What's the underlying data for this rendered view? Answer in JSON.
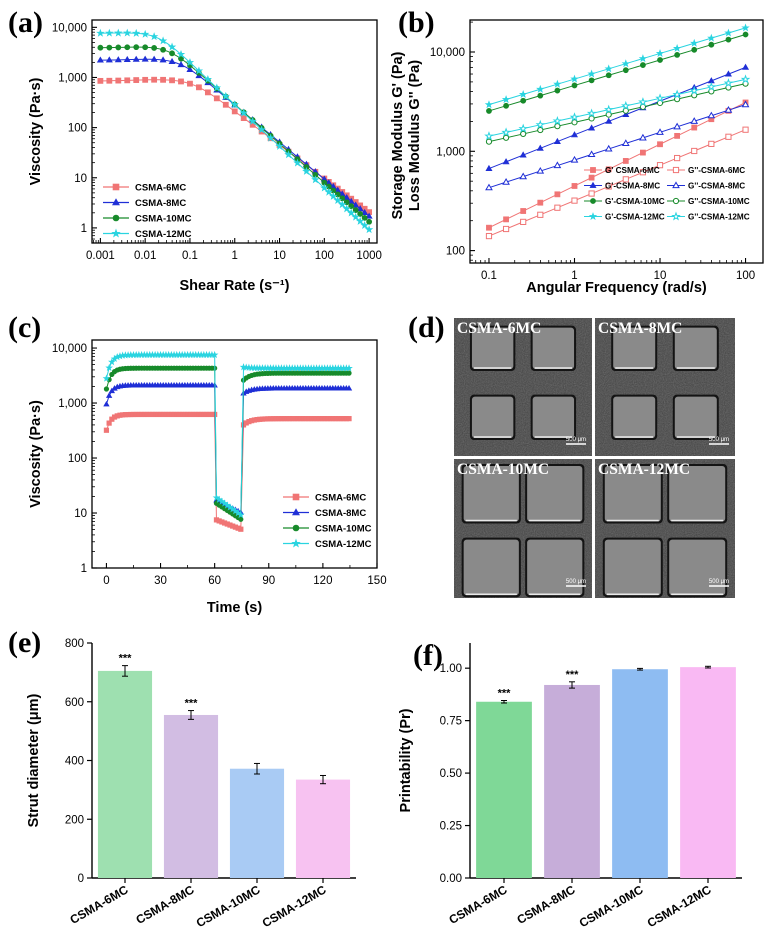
{
  "figure": {
    "panels": [
      "(a)",
      "(b)",
      "(c)",
      "(d)",
      "(e)",
      "(f)"
    ]
  },
  "colors": {
    "CSMA-6MC": "#f07575",
    "CSMA-8MC": "#1f2fd6",
    "CSMA-10MC": "#178a2a",
    "CSMA-12MC": "#2ad4e0",
    "bar_6MC": "#9ee0b0",
    "bar_8MC": "#d2bde3",
    "bar_10MC": "#a9cbf4",
    "bar_12MC": "#f7c2f1",
    "bar_f_6MC": "#7fd897",
    "bar_f_8MC": "#c6add9",
    "bar_f_10MC": "#8ebcf2",
    "bar_f_12MC": "#f9b9f3"
  },
  "chart_data": [
    {
      "panel": "(a)",
      "type": "line",
      "xscale": "log",
      "yscale": "log",
      "xlabel": "Shear Rate (s⁻¹)",
      "ylabel": "Viscosity (Pa·s)",
      "xlim": [
        0.001,
        1000
      ],
      "ylim": [
        0.5,
        14000
      ],
      "xticks": [
        0.001,
        0.01,
        0.1,
        1,
        10,
        100,
        1000
      ],
      "xtick_labels": [
        "0.001",
        "0.01",
        "0.1",
        "1",
        "10",
        "100",
        "1000"
      ],
      "yticks": [
        1,
        10,
        100,
        1000,
        10000
      ],
      "ytick_labels": [
        "1",
        "10",
        "100",
        "1,000",
        "10,000"
      ],
      "legend": [
        "CSMA-6MC",
        "CSMA-8MC",
        "CSMA-10MC",
        "CSMA-12MC"
      ],
      "series": [
        {
          "name": "CSMA-6MC",
          "marker": "square",
          "eta0": 850,
          "lambda": 8,
          "n": 0.33
        },
        {
          "name": "CSMA-8MC",
          "marker": "triangle",
          "eta0": 2200,
          "lambda": 16,
          "n": 0.26
        },
        {
          "name": "CSMA-10MC",
          "marker": "circle",
          "eta0": 3900,
          "lambda": 28,
          "n": 0.22
        },
        {
          "name": "CSMA-12MC",
          "marker": "star",
          "eta0": 7600,
          "lambda": 52,
          "n": 0.17
        }
      ]
    },
    {
      "panel": "(b)",
      "type": "line",
      "xscale": "log",
      "yscale": "log",
      "xlabel": "Angular Frequency (rad/s)",
      "ylabel": "Storage Modulus G' (Pa)",
      "ylabel2": "Loss Modulus G'' (Pa)",
      "xlim": [
        0.06,
        160
      ],
      "ylim": [
        75,
        21000
      ],
      "xticks": [
        0.1,
        1,
        10,
        100
      ],
      "xtick_labels": [
        "0.1",
        "1",
        "10",
        "100"
      ],
      "yticks": [
        100,
        1000,
        10000
      ],
      "ytick_labels": [
        "100",
        "1,000",
        "10,000"
      ],
      "legend": [
        "G' CSMA-6MC",
        "G''-CSMA-6MC",
        "G'-CSMA-8MC",
        "G''-CSMA-8MC",
        "G'-CSMA-10MC",
        "G''-CSMA-10MC",
        "G'-CSMA-12MC",
        "G''-CSMA-12MC"
      ],
      "series": [
        {
          "name": "G' CSMA-6MC",
          "color": "CSMA-6MC",
          "filled": true,
          "marker": "square",
          "y_start": 170,
          "y_end": 3100
        },
        {
          "name": "G''-CSMA-6MC",
          "color": "CSMA-6MC",
          "filled": false,
          "marker": "square",
          "y_start": 140,
          "y_end": 1650
        },
        {
          "name": "G'-CSMA-8MC",
          "color": "CSMA-8MC",
          "filled": true,
          "marker": "triangle",
          "y_start": 670,
          "y_end": 7000
        },
        {
          "name": "G''-CSMA-8MC",
          "color": "CSMA-8MC",
          "filled": false,
          "marker": "triangle",
          "y_start": 430,
          "y_end": 2950
        },
        {
          "name": "G'-CSMA-10MC",
          "color": "CSMA-10MC",
          "filled": true,
          "marker": "circle",
          "y_start": 2550,
          "y_end": 15000
        },
        {
          "name": "G''-CSMA-10MC",
          "color": "CSMA-10MC",
          "filled": false,
          "marker": "circle",
          "y_start": 1250,
          "y_end": 4800
        },
        {
          "name": "G'-CSMA-12MC",
          "color": "CSMA-12MC",
          "filled": true,
          "marker": "star",
          "y_start": 2950,
          "y_end": 17500
        },
        {
          "name": "G''-CSMA-12MC",
          "color": "CSMA-12MC",
          "filled": false,
          "marker": "star",
          "y_start": 1420,
          "y_end": 5300
        }
      ]
    },
    {
      "panel": "(c)",
      "type": "line",
      "xscale": "linear",
      "yscale": "log",
      "xlabel": "Time (s)",
      "ylabel": "Viscosity (Pa·s)",
      "xlim": [
        -8,
        150
      ],
      "ylim": [
        1,
        14000
      ],
      "xticks": [
        0,
        30,
        60,
        90,
        120,
        150
      ],
      "xtick_labels": [
        "0",
        "30",
        "60",
        "90",
        "120",
        "150"
      ],
      "yticks": [
        1,
        10,
        100,
        1000,
        10000
      ],
      "ytick_labels": [
        "1",
        "10",
        "100",
        "1,000",
        "10,000"
      ],
      "legend": [
        "CSMA-6MC",
        "CSMA-8MC",
        "CSMA-10MC",
        "CSMA-12MC"
      ],
      "series": [
        {
          "name": "CSMA-6MC",
          "marker": "square",
          "start": 320,
          "plateau": 620,
          "low_start": 7.5,
          "low_end": 5.0,
          "recover_start": 400,
          "recover_plateau": 520
        },
        {
          "name": "CSMA-8MC",
          "marker": "triangle",
          "start": 950,
          "plateau": 2100,
          "low_start": 17,
          "low_end": 10,
          "recover_start": 1500,
          "recover_plateau": 1850
        },
        {
          "name": "CSMA-10MC",
          "marker": "circle",
          "start": 1800,
          "plateau": 4300,
          "low_start": 15,
          "low_end": 7.5,
          "recover_start": 2600,
          "recover_plateau": 3500
        },
        {
          "name": "CSMA-12MC",
          "marker": "star",
          "start": 2800,
          "plateau": 7500,
          "low_start": 19,
          "low_end": 9,
          "recover_start": 4500,
          "recover_plateau": 4300
        }
      ]
    },
    {
      "panel": "(e)",
      "type": "bar",
      "categories": [
        "CSMA-6MC",
        "CSMA-8MC",
        "CSMA-10MC",
        "CSMA-12MC"
      ],
      "values": [
        705,
        555,
        372,
        335
      ],
      "errors": [
        18,
        15,
        18,
        14
      ],
      "significance": [
        "***",
        "***",
        "",
        ""
      ],
      "ylabel": "Strut diameter (μm)",
      "ylim": [
        0,
        800
      ],
      "yticks": [
        0,
        200,
        400,
        600,
        800
      ],
      "ytick_labels": [
        "0",
        "200",
        "400",
        "600",
        "800"
      ]
    },
    {
      "panel": "(f)",
      "type": "bar",
      "categories": [
        "CSMA-6MC",
        "CSMA-8MC",
        "CSMA-10MC",
        "CSMA-12MC"
      ],
      "values": [
        0.84,
        0.92,
        0.995,
        1.005
      ],
      "errors": [
        0.006,
        0.015,
        0.004,
        0.004
      ],
      "significance": [
        "***",
        "***",
        "",
        ""
      ],
      "ylabel": "Printability (Pr)",
      "ylim": [
        0,
        1.12
      ],
      "yticks": [
        0,
        0.25,
        0.5,
        0.75,
        1.0
      ],
      "ytick_labels": [
        "0.00",
        "0.25",
        "0.50",
        "0.75",
        "1.00"
      ]
    }
  ],
  "micrographs": {
    "panel": "(d)",
    "titles": [
      "CSMA-6MC",
      "CSMA-8MC",
      "CSMA-10MC",
      "CSMA-12MC"
    ],
    "scale_bar": "500 μm"
  }
}
